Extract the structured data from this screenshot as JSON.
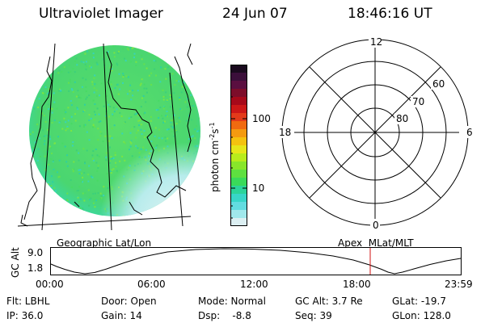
{
  "header": {
    "title": "Ultraviolet Imager",
    "date": "24 Jun 07",
    "time": "18:46:16 UT"
  },
  "colorbar": {
    "label": "photon cm",
    "label_sup1": "-2",
    "label_s": "s",
    "label_sup2": "-1",
    "ticks": [
      "100",
      "10"
    ],
    "colors": [
      "#1a0a1e",
      "#3b0f3a",
      "#5a0f40",
      "#7d0d2a",
      "#a6091a",
      "#cc1717",
      "#e33a1a",
      "#f06a10",
      "#f49a10",
      "#f4c20f",
      "#e6e61a",
      "#b8ec1c",
      "#88e62a",
      "#5ee040",
      "#3ada5a",
      "#2cd49a",
      "#38d6c8",
      "#62dce0",
      "#a0e8ec",
      "#dceff2"
    ]
  },
  "polar": {
    "mlt_labels": {
      "top": "12",
      "bottom": "0",
      "left": "18",
      "right": "6"
    },
    "lat_labels": [
      "60",
      "70",
      "80"
    ]
  },
  "altplot": {
    "left_title": "Geographic Lat/Lon",
    "right_title": "Apex  MLat/MLT",
    "ylabel": "GC Alt",
    "yticks": [
      "9.0",
      "1.8"
    ],
    "xticks": [
      "00:00",
      "06:00",
      "12:00",
      "18:00",
      "23:59"
    ]
  },
  "info": {
    "row1": [
      {
        "k": "Flt: LBHL"
      },
      {
        "k": "Door: Open"
      },
      {
        "k": "Mode: Normal"
      },
      {
        "k": "GC Alt: 3.7 Re"
      },
      {
        "k": "GLat: -19.7"
      }
    ],
    "row2": [
      {
        "k": "IP: 36.0"
      },
      {
        "k": "Gain: 14"
      },
      {
        "k": "Dsp:    -8.8"
      },
      {
        "k": "Seq: 39"
      },
      {
        "k": "GLon: 128.0"
      }
    ]
  },
  "colors": {
    "image_fill": "#4ad670",
    "image_edge": "#36d8c0",
    "image_pale": "#cdeef0",
    "current_time_marker": "#d01010"
  }
}
